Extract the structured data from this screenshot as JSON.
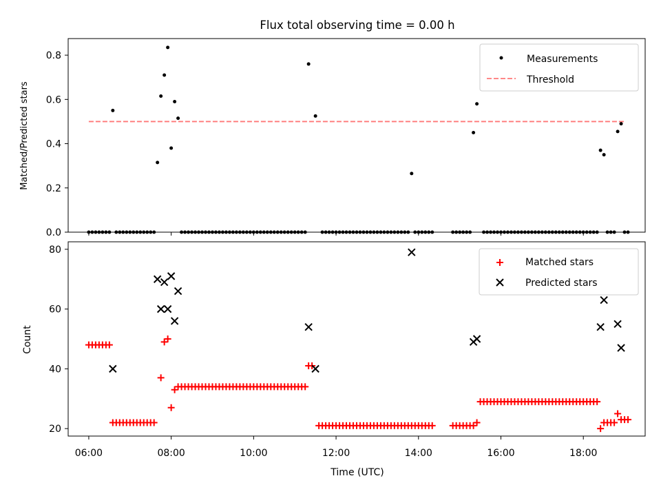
{
  "chart_data": [
    {
      "type": "scatter",
      "title": "Flux total observing time = 0.00 h",
      "xlabel": "",
      "ylabel": "Matched/Predicted stars",
      "xlim": [
        "05:30",
        "19:30"
      ],
      "ylim": [
        0,
        0.875
      ],
      "yticks": [
        "0.0",
        "0.2",
        "0.4",
        "0.6",
        "0.8"
      ],
      "legend": "top-right",
      "grid": false,
      "series": [
        {
          "name": "Measurements",
          "color": "#000000",
          "marker": "dot",
          "points": [
            [
              "06:35",
              0.55
            ],
            [
              "07:40",
              0.315
            ],
            [
              "07:45",
              0.615
            ],
            [
              "07:50",
              0.71
            ],
            [
              "07:55",
              0.835
            ],
            [
              "08:00",
              0.38
            ],
            [
              "08:05",
              0.59
            ],
            [
              "08:10",
              0.515
            ],
            [
              "11:20",
              0.76
            ],
            [
              "11:30",
              0.525
            ],
            [
              "13:50",
              0.265
            ],
            [
              "15:20",
              0.45
            ],
            [
              "15:25",
              0.58
            ],
            [
              "18:25",
              0.37
            ],
            [
              "18:30",
              0.35
            ],
            [
              "18:50",
              0.455
            ],
            [
              "18:55",
              0.49
            ]
          ],
          "zero_points": [
            "06:00",
            "06:05",
            "06:10",
            "06:15",
            "06:20",
            "06:25",
            "06:30",
            "06:40",
            "06:45",
            "06:50",
            "06:55",
            "07:00",
            "07:05",
            "07:10",
            "07:15",
            "07:20",
            "07:25",
            "07:30",
            "07:35",
            "08:15",
            "08:20",
            "08:25",
            "08:30",
            "08:35",
            "08:40",
            "08:45",
            "08:50",
            "08:55",
            "09:00",
            "09:05",
            "09:10",
            "09:15",
            "09:20",
            "09:25",
            "09:30",
            "09:35",
            "09:40",
            "09:45",
            "09:50",
            "09:55",
            "10:00",
            "10:05",
            "10:10",
            "10:15",
            "10:20",
            "10:25",
            "10:30",
            "10:35",
            "10:40",
            "10:45",
            "10:50",
            "10:55",
            "11:00",
            "11:05",
            "11:10",
            "11:15",
            "11:40",
            "11:45",
            "11:50",
            "11:55",
            "12:00",
            "12:05",
            "12:10",
            "12:15",
            "12:20",
            "12:25",
            "12:30",
            "12:35",
            "12:40",
            "12:45",
            "12:50",
            "12:55",
            "13:00",
            "13:05",
            "13:10",
            "13:15",
            "13:20",
            "13:25",
            "13:30",
            "13:35",
            "13:40",
            "13:45",
            "13:55",
            "14:00",
            "14:05",
            "14:10",
            "14:15",
            "14:20",
            "14:50",
            "14:55",
            "15:00",
            "15:05",
            "15:10",
            "15:15",
            "15:35",
            "15:40",
            "15:45",
            "15:50",
            "15:55",
            "16:00",
            "16:05",
            "16:10",
            "16:15",
            "16:20",
            "16:25",
            "16:30",
            "16:35",
            "16:40",
            "16:45",
            "16:50",
            "16:55",
            "17:00",
            "17:05",
            "17:10",
            "17:15",
            "17:20",
            "17:25",
            "17:30",
            "17:35",
            "17:40",
            "17:45",
            "17:50",
            "17:55",
            "18:00",
            "18:05",
            "18:10",
            "18:15",
            "18:20",
            "18:35",
            "18:40",
            "18:45",
            "19:00",
            "19:05"
          ]
        },
        {
          "name": "Threshold",
          "color": "#ff7777",
          "line": "dashed",
          "x": [
            "06:00",
            "19:00"
          ],
          "y": [
            0.5,
            0.5
          ]
        }
      ]
    },
    {
      "type": "scatter",
      "title": "",
      "xlabel": "Time (UTC)",
      "ylabel": "Count",
      "xlim": [
        "05:30",
        "19:30"
      ],
      "ylim": [
        17.5,
        82.5
      ],
      "xticks": [
        "06:00",
        "08:00",
        "10:00",
        "12:00",
        "14:00",
        "16:00",
        "18:00"
      ],
      "yticks": [
        "20",
        "40",
        "60",
        "80"
      ],
      "legend": "top-right",
      "grid": false,
      "series": [
        {
          "name": "Matched stars",
          "color": "#ff0000",
          "marker": "plus",
          "runs": [
            {
              "from": "06:00",
              "to": "06:30",
              "value": 48
            },
            {
              "from": "06:35",
              "to": "07:35",
              "value": 22
            },
            {
              "from": "08:15",
              "to": "11:15",
              "value": 34
            },
            {
              "from": "11:35",
              "to": "14:20",
              "value": 21
            },
            {
              "from": "14:50",
              "to": "15:20",
              "value": 21
            },
            {
              "from": "15:30",
              "to": "18:20",
              "value": 29
            },
            {
              "from": "18:30",
              "to": "18:45",
              "value": 22
            },
            {
              "from": "18:55",
              "to": "19:05",
              "value": 23
            }
          ],
          "points": [
            [
              "07:45",
              37
            ],
            [
              "07:50",
              49
            ],
            [
              "07:55",
              50
            ],
            [
              "08:00",
              27
            ],
            [
              "08:05",
              33
            ],
            [
              "08:10",
              34
            ],
            [
              "11:20",
              41
            ],
            [
              "11:25",
              41
            ],
            [
              "15:25",
              22
            ],
            [
              "18:25",
              20
            ],
            [
              "18:50",
              25
            ]
          ]
        },
        {
          "name": "Predicted stars",
          "color": "#000000",
          "marker": "x",
          "points": [
            [
              "06:35",
              40
            ],
            [
              "07:40",
              70
            ],
            [
              "07:45",
              60
            ],
            [
              "07:50",
              69
            ],
            [
              "07:55",
              60
            ],
            [
              "08:00",
              71
            ],
            [
              "08:05",
              56
            ],
            [
              "08:10",
              66
            ],
            [
              "11:20",
              54
            ],
            [
              "11:30",
              40
            ],
            [
              "13:50",
              79
            ],
            [
              "15:20",
              49
            ],
            [
              "15:25",
              50
            ],
            [
              "18:25",
              54
            ],
            [
              "18:30",
              63
            ],
            [
              "18:50",
              55
            ],
            [
              "18:55",
              47
            ]
          ]
        }
      ]
    }
  ]
}
